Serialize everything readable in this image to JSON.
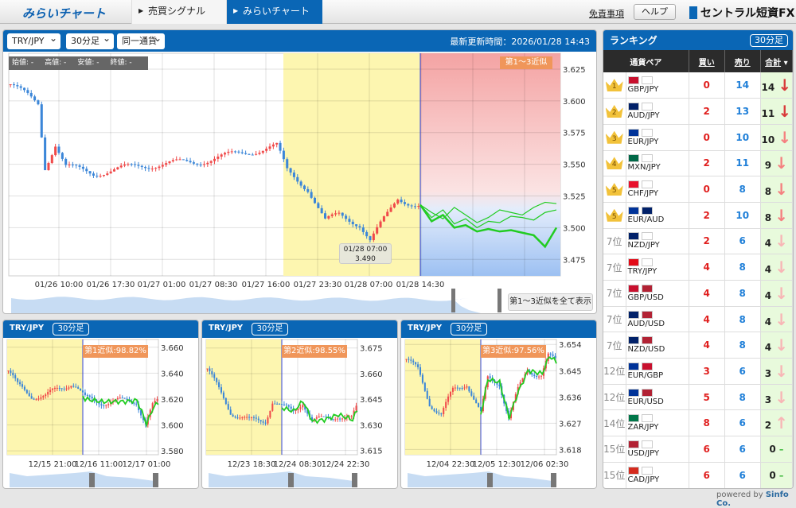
{
  "header": {
    "logo": "みらいチャート",
    "nav": [
      "売買シグナル",
      "みらいチャート"
    ],
    "disclaimer": "免責事項",
    "help": "ヘルプ",
    "brand": "セントラル短資FX"
  },
  "main": {
    "pair": "TRY/JPY",
    "timeframe": "30分足",
    "mode": "同一通貨",
    "updated_label": "最新更新時間：",
    "updated": "2026/01/28 14:43",
    "ohlc": [
      "始値: -",
      "高値: -",
      "安値: -",
      "終値: -"
    ],
    "forecast_badge": "第1～3近似",
    "y_ticks": [
      "3.625",
      "3.600",
      "3.575",
      "3.550",
      "3.525",
      "3.500",
      "3.475"
    ],
    "x_ticks": [
      "01/26 10:00",
      "01/26 17:30",
      "01/27 01:00",
      "01/27 08:30",
      "01/27 16:00",
      "01/27 23:30",
      "01/28 07:00",
      "01/28 14:30"
    ],
    "tooltip": {
      "time": "01/28 07:00",
      "value": "3.490"
    },
    "show_all": "第1～3近似を全て表示",
    "chart_data": {
      "type": "candlestick",
      "ylim": [
        3.462,
        3.6375
      ],
      "bars": 119,
      "keypoints": [
        [
          0,
          3.613
        ],
        [
          8,
          3.598
        ],
        [
          10,
          3.548
        ],
        [
          13,
          3.566
        ],
        [
          16,
          3.548
        ],
        [
          24,
          3.543
        ],
        [
          38,
          3.549
        ],
        [
          54,
          3.552
        ],
        [
          67,
          3.559
        ],
        [
          77,
          3.564
        ],
        [
          80,
          3.545
        ],
        [
          86,
          3.531
        ],
        [
          91,
          3.505
        ],
        [
          95,
          3.51
        ],
        [
          101,
          3.503
        ],
        [
          104,
          3.49
        ],
        [
          109,
          3.51
        ],
        [
          112,
          3.523
        ],
        [
          118,
          3.518
        ]
      ],
      "forecasts": [
        [
          3.518,
          3.512,
          3.507,
          3.516,
          3.51,
          3.504,
          3.508,
          3.514,
          3.512,
          3.51,
          3.516,
          3.52,
          3.519
        ],
        [
          3.518,
          3.508,
          3.514,
          3.503,
          3.507,
          3.5,
          3.505,
          3.504,
          3.509,
          3.508,
          3.506,
          3.512,
          3.514
        ],
        [
          3.518,
          3.505,
          3.51,
          3.5,
          3.502,
          3.497,
          3.499,
          3.497,
          3.498,
          3.496,
          3.494,
          3.485,
          3.5
        ]
      ]
    }
  },
  "similar": [
    {
      "pair": "TRY/JPY",
      "timeframe": "30分足",
      "badge": "第1近似:98.82%",
      "y_ticks": [
        "3.660",
        "3.640",
        "3.620",
        "3.600",
        "3.580"
      ],
      "x_ticks": [
        "12/15 21:00",
        "12/16 11:00",
        "12/17 01:00"
      ],
      "ylim": [
        3.577,
        3.666
      ],
      "keypoints": [
        [
          0,
          3.642
        ],
        [
          4,
          3.63
        ],
        [
          10,
          3.623
        ],
        [
          16,
          3.622
        ],
        [
          22,
          3.628
        ],
        [
          27,
          3.633
        ],
        [
          29,
          3.63
        ],
        [
          33,
          3.62
        ],
        [
          40,
          3.618
        ],
        [
          50,
          3.618
        ],
        [
          55,
          3.619
        ],
        [
          59,
          3.601
        ],
        [
          62,
          3.614
        ],
        [
          64,
          3.617
        ]
      ]
    },
    {
      "pair": "TRY/JPY",
      "timeframe": "30分足",
      "badge": "第2近似:98.55%",
      "y_ticks": [
        "3.675",
        "3.660",
        "3.645",
        "3.630",
        "3.615"
      ],
      "x_ticks": [
        "12/23 18:30",
        "12/24 08:30",
        "12/24 22:30"
      ],
      "ylim": [
        3.6125,
        3.68
      ],
      "keypoints": [
        [
          0,
          3.663
        ],
        [
          5,
          3.65
        ],
        [
          10,
          3.638
        ],
        [
          18,
          3.632
        ],
        [
          25,
          3.633
        ],
        [
          28,
          3.644
        ],
        [
          32,
          3.64
        ],
        [
          37,
          3.638
        ],
        [
          41,
          3.644
        ],
        [
          45,
          3.632
        ],
        [
          50,
          3.633
        ],
        [
          56,
          3.636
        ],
        [
          62,
          3.633
        ],
        [
          64,
          3.639
        ]
      ]
    },
    {
      "pair": "TRY/JPY",
      "timeframe": "30分足",
      "badge": "第3近似:97.56%",
      "y_ticks": [
        "3.654",
        "3.645",
        "3.636",
        "3.627",
        "3.618"
      ],
      "x_ticks": [
        "12/04 22:30",
        "12/05 12:30",
        "12/06 02:30"
      ],
      "ylim": [
        3.6162,
        3.6557
      ],
      "keypoints": [
        [
          0,
          3.649
        ],
        [
          5,
          3.645
        ],
        [
          10,
          3.634
        ],
        [
          15,
          3.63
        ],
        [
          20,
          3.638
        ],
        [
          26,
          3.641
        ],
        [
          32,
          3.63
        ],
        [
          35,
          3.642
        ],
        [
          40,
          3.641
        ],
        [
          44,
          3.629
        ],
        [
          48,
          3.638
        ],
        [
          52,
          3.645
        ],
        [
          58,
          3.644
        ],
        [
          61,
          3.65
        ],
        [
          64,
          3.648
        ]
      ]
    }
  ],
  "ranking": {
    "title": "ランキング",
    "timeframe": "30分足",
    "headers": [
      "通貨ペア",
      "買い",
      "売り",
      "合計"
    ],
    "rows": [
      {
        "rank": "1",
        "pair": "GBP/JPY",
        "flags": [
          "#c8102e",
          "#fff"
        ],
        "buy": "0",
        "sell": "14",
        "total": "14",
        "dir": "down-strong"
      },
      {
        "rank": "2",
        "pair": "AUD/JPY",
        "flags": [
          "#012169",
          "#fff"
        ],
        "buy": "2",
        "sell": "13",
        "total": "11",
        "dir": "down-strong"
      },
      {
        "rank": "3",
        "pair": "EUR/JPY",
        "flags": [
          "#003399",
          "#fff"
        ],
        "buy": "0",
        "sell": "10",
        "total": "10",
        "dir": "down"
      },
      {
        "rank": "4",
        "pair": "MXN/JPY",
        "flags": [
          "#006847",
          "#fff"
        ],
        "buy": "2",
        "sell": "11",
        "total": "9",
        "dir": "down"
      },
      {
        "rank": "5",
        "pair": "CHF/JPY",
        "flags": [
          "#e8112d",
          "#fff"
        ],
        "buy": "0",
        "sell": "8",
        "total": "8",
        "dir": "down"
      },
      {
        "rank": "5",
        "pair": "EUR/AUD",
        "flags": [
          "#003399",
          "#012169"
        ],
        "buy": "2",
        "sell": "10",
        "total": "8",
        "dir": "down"
      },
      {
        "rank": "7位",
        "pair": "NZD/JPY",
        "flags": [
          "#012169",
          "#fff"
        ],
        "buy": "2",
        "sell": "6",
        "total": "4",
        "dir": "down-light"
      },
      {
        "rank": "7位",
        "pair": "TRY/JPY",
        "flags": [
          "#e30a17",
          "#fff"
        ],
        "buy": "4",
        "sell": "8",
        "total": "4",
        "dir": "down-light"
      },
      {
        "rank": "7位",
        "pair": "GBP/USD",
        "flags": [
          "#c8102e",
          "#b22234"
        ],
        "buy": "4",
        "sell": "8",
        "total": "4",
        "dir": "down-light"
      },
      {
        "rank": "7位",
        "pair": "AUD/USD",
        "flags": [
          "#012169",
          "#b22234"
        ],
        "buy": "4",
        "sell": "8",
        "total": "4",
        "dir": "down-light"
      },
      {
        "rank": "7位",
        "pair": "NZD/USD",
        "flags": [
          "#012169",
          "#b22234"
        ],
        "buy": "4",
        "sell": "8",
        "total": "4",
        "dir": "down-light"
      },
      {
        "rank": "12位",
        "pair": "EUR/GBP",
        "flags": [
          "#003399",
          "#c8102e"
        ],
        "buy": "3",
        "sell": "6",
        "total": "3",
        "dir": "down-light"
      },
      {
        "rank": "12位",
        "pair": "EUR/USD",
        "flags": [
          "#003399",
          "#b22234"
        ],
        "buy": "5",
        "sell": "8",
        "total": "3",
        "dir": "down-light"
      },
      {
        "rank": "14位",
        "pair": "ZAR/JPY",
        "flags": [
          "#007749",
          "#fff"
        ],
        "buy": "8",
        "sell": "6",
        "total": "2",
        "dir": "up-light"
      },
      {
        "rank": "15位",
        "pair": "USD/JPY",
        "flags": [
          "#b22234",
          "#fff"
        ],
        "buy": "6",
        "sell": "6",
        "total": "0",
        "dir": "flat"
      },
      {
        "rank": "15位",
        "pair": "CAD/JPY",
        "flags": [
          "#d52b1e",
          "#fff"
        ],
        "buy": "6",
        "sell": "6",
        "total": "0",
        "dir": "flat"
      }
    ]
  },
  "footer": {
    "powered": "powered by",
    "company": "Sinfo Co."
  },
  "colors": {
    "brand_blue": "#0a66b5",
    "up": "#f04a4a",
    "down": "#3b86d8",
    "forecast": "#22cc22",
    "past_zone": "#fdf6b0",
    "badge": "#f0965a"
  }
}
